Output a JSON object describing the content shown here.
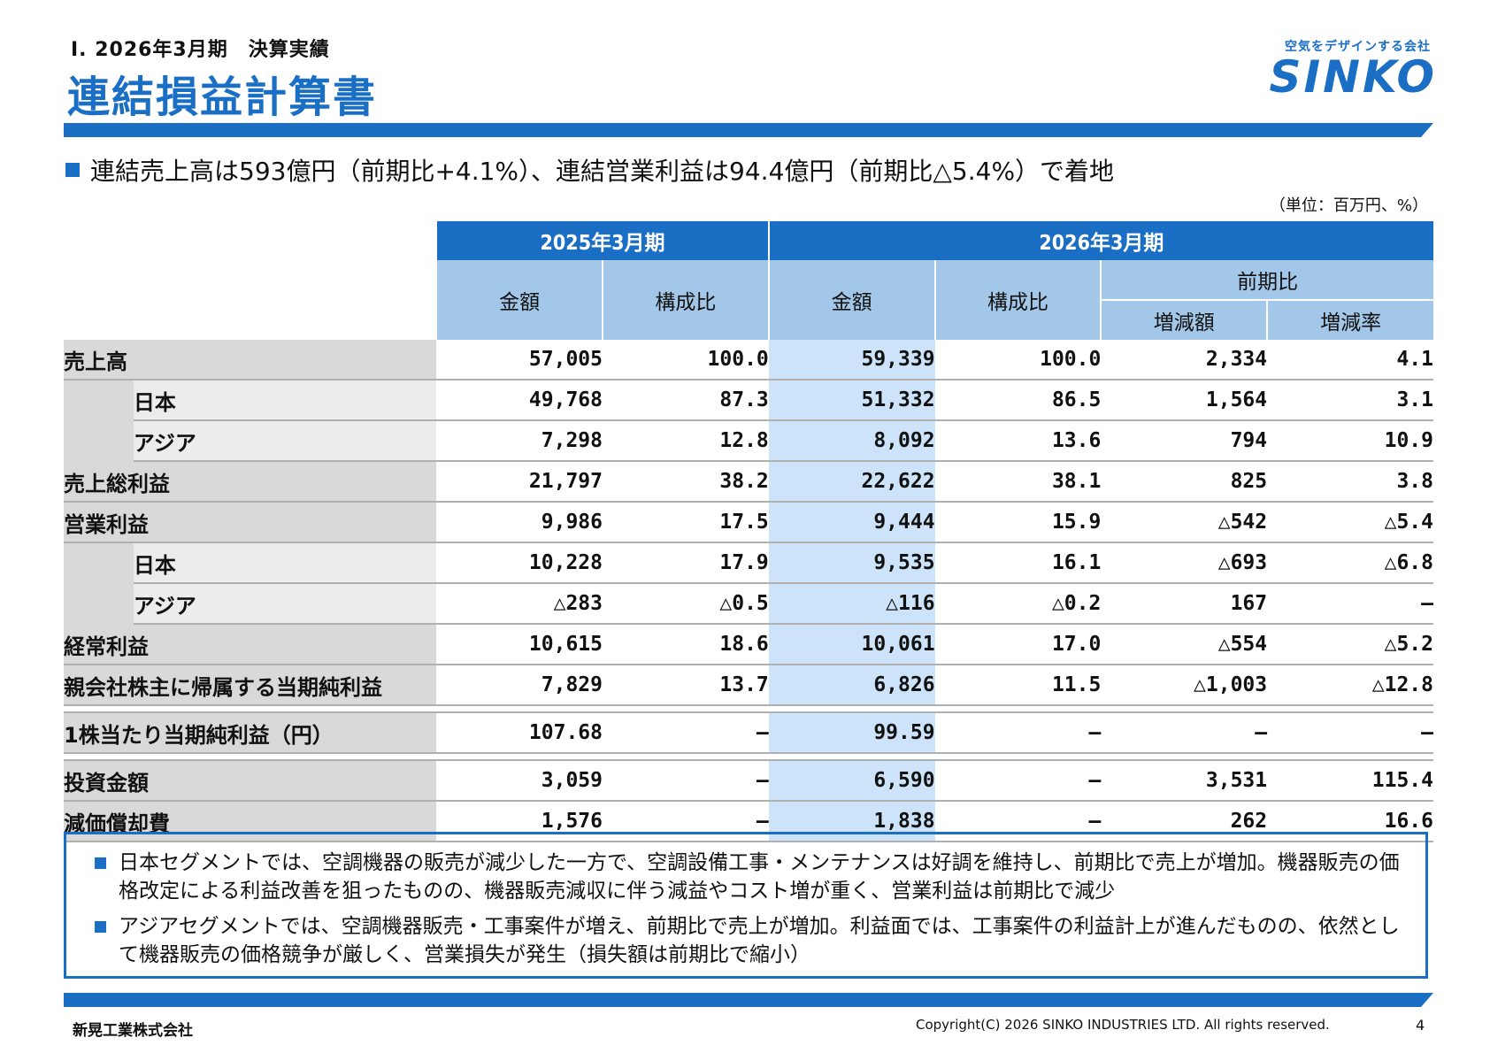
{
  "header": {
    "section": "Ⅰ. 2026年3月期　決算実績",
    "title": "連結損益計算書",
    "logo_tagline": "空気をデザインする会社",
    "logo_name": "SINKO"
  },
  "headline": "連結売上高は593億円（前期比+4.1%）、連結営業利益は94.4億円（前期比△5.4%）で着地",
  "unit": "（単位：百万円、%）",
  "table": {
    "fy_prev": "2025年3月期",
    "fy_cur": "2026年3月期",
    "col_amount": "金額",
    "col_ratio": "構成比",
    "col_yoy": "前期比",
    "col_change": "増減額",
    "col_rate": "増減率",
    "rows": [
      {
        "label": "売上高",
        "prev_amt": "57,005",
        "prev_ratio": "100.0",
        "cur_amt": "59,339",
        "cur_ratio": "100.0",
        "chg": "2,334",
        "rate": "4.1"
      },
      {
        "label": "日本",
        "prev_amt": "49,768",
        "prev_ratio": "87.3",
        "cur_amt": "51,332",
        "cur_ratio": "86.5",
        "chg": "1,564",
        "rate": "3.1"
      },
      {
        "label": "アジア",
        "prev_amt": "7,298",
        "prev_ratio": "12.8",
        "cur_amt": "8,092",
        "cur_ratio": "13.6",
        "chg": "794",
        "rate": "10.9"
      },
      {
        "label": "売上総利益",
        "prev_amt": "21,797",
        "prev_ratio": "38.2",
        "cur_amt": "22,622",
        "cur_ratio": "38.1",
        "chg": "825",
        "rate": "3.8"
      },
      {
        "label": "営業利益",
        "prev_amt": "9,986",
        "prev_ratio": "17.5",
        "cur_amt": "9,444",
        "cur_ratio": "15.9",
        "chg": "△542",
        "rate": "△5.4"
      },
      {
        "label": "日本",
        "prev_amt": "10,228",
        "prev_ratio": "17.9",
        "cur_amt": "9,535",
        "cur_ratio": "16.1",
        "chg": "△693",
        "rate": "△6.8"
      },
      {
        "label": "アジア",
        "prev_amt": "△283",
        "prev_ratio": "△0.5",
        "cur_amt": "△116",
        "cur_ratio": "△0.2",
        "chg": "167",
        "rate": "―"
      },
      {
        "label": "経常利益",
        "prev_amt": "10,615",
        "prev_ratio": "18.6",
        "cur_amt": "10,061",
        "cur_ratio": "17.0",
        "chg": "△554",
        "rate": "△5.2"
      },
      {
        "label": "親会社株主に帰属する当期純利益",
        "prev_amt": "7,829",
        "prev_ratio": "13.7",
        "cur_amt": "6,826",
        "cur_ratio": "11.5",
        "chg": "△1,003",
        "rate": "△12.8"
      },
      {
        "label": "1株当たり当期純利益（円）",
        "prev_amt": "107.68",
        "prev_ratio": "―",
        "cur_amt": "99.59",
        "cur_ratio": "―",
        "chg": "―",
        "rate": "―"
      },
      {
        "label": "投資金額",
        "prev_amt": "3,059",
        "prev_ratio": "―",
        "cur_amt": "6,590",
        "cur_ratio": "―",
        "chg": "3,531",
        "rate": "115.4"
      },
      {
        "label": "減価償却費",
        "prev_amt": "1,576",
        "prev_ratio": "―",
        "cur_amt": "1,838",
        "cur_ratio": "―",
        "chg": "262",
        "rate": "16.6"
      }
    ]
  },
  "notes": [
    "日本セグメントでは、空調機器の販売が減少した一方で、空調設備工事・メンテナンスは好調を維持し、前期比で売上が増加。機器販売の価格改定による利益改善を狙ったものの、機器販売減収に伴う減益やコスト増が重く、営業利益は前期比で減少",
    "アジアセグメントでは、空調機器販売・工事案件が増え、前期比で売上が増加。利益面では、工事案件の利益計上が進んだものの、依然として機器販売の価格競争が厳しく、営業損失が発生（損失額は前期比で縮小）"
  ],
  "footer": {
    "company": "新晃工業株式会社",
    "copyright": "Copyright(C) 2026 SINKO INDUSTRIES LTD. All rights reserved.",
    "page": "4"
  },
  "colors": {
    "brand": "#1a6fc4",
    "header_sub": "#a3c7e8",
    "current_col": "#cce3fa"
  }
}
